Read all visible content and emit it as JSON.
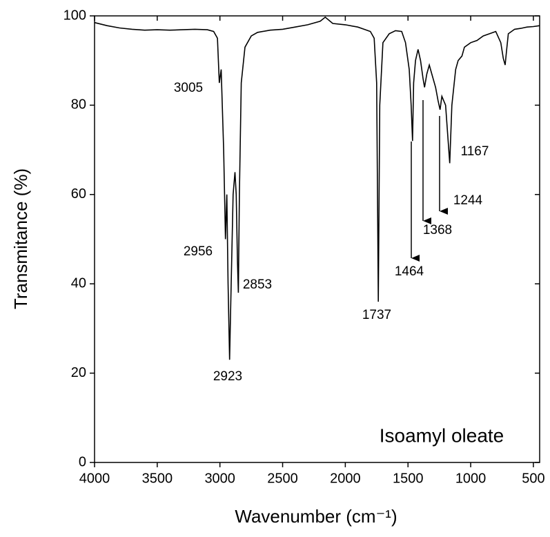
{
  "chart_data": {
    "type": "line",
    "x_label": "Wavenumber (cm⁻¹)",
    "y_label": "Transmitance (%)",
    "legend_text": "Isoamyl oleate",
    "color": "#000000",
    "xlim": [
      4000,
      450
    ],
    "ylim": [
      0,
      100
    ],
    "xticks": [
      4000,
      3500,
      3000,
      2500,
      2000,
      1500,
      1000,
      500
    ],
    "yticks": [
      0,
      20,
      40,
      60,
      80,
      100
    ],
    "x": [
      4000,
      3900,
      3800,
      3700,
      3600,
      3500,
      3400,
      3300,
      3200,
      3100,
      3050,
      3020,
      3005,
      2990,
      2970,
      2956,
      2945,
      2935,
      2923,
      2910,
      2895,
      2880,
      2870,
      2860,
      2853,
      2845,
      2830,
      2800,
      2750,
      2700,
      2600,
      2500,
      2400,
      2300,
      2200,
      2160,
      2100,
      2000,
      1900,
      1850,
      1800,
      1770,
      1750,
      1737,
      1725,
      1700,
      1650,
      1600,
      1550,
      1520,
      1490,
      1475,
      1464,
      1455,
      1440,
      1420,
      1400,
      1380,
      1368,
      1350,
      1330,
      1310,
      1280,
      1260,
      1244,
      1230,
      1200,
      1180,
      1167,
      1150,
      1120,
      1100,
      1070,
      1050,
      1000,
      950,
      900,
      850,
      800,
      760,
      740,
      725,
      715,
      700,
      650,
      600,
      550,
      500,
      450
    ],
    "values": [
      98.5,
      97.8,
      97.3,
      97.0,
      96.8,
      96.9,
      96.8,
      96.9,
      97.0,
      96.9,
      96.5,
      95,
      85,
      88,
      70,
      50,
      60,
      40,
      23,
      40,
      60,
      65,
      60,
      45,
      38,
      60,
      85,
      93,
      95.5,
      96.3,
      96.8,
      97,
      97.5,
      98,
      98.8,
      99.7,
      98.3,
      98,
      97.5,
      97,
      96.5,
      95,
      85,
      36,
      80,
      94,
      96,
      96.7,
      96.5,
      94,
      88,
      80,
      72,
      85,
      90,
      92.5,
      90,
      86,
      84,
      87,
      89,
      87,
      84,
      81,
      79,
      82,
      80,
      72,
      67,
      80,
      88,
      90,
      91,
      93,
      94,
      94.5,
      95.5,
      96,
      96.5,
      94,
      90.5,
      89,
      92,
      96,
      97,
      97.2,
      97.5,
      97.6,
      97.8
    ],
    "annotations": [
      "3005",
      "2956",
      "2923",
      "2853",
      "1737",
      "1464",
      "1368",
      "1244",
      "1167"
    ]
  }
}
